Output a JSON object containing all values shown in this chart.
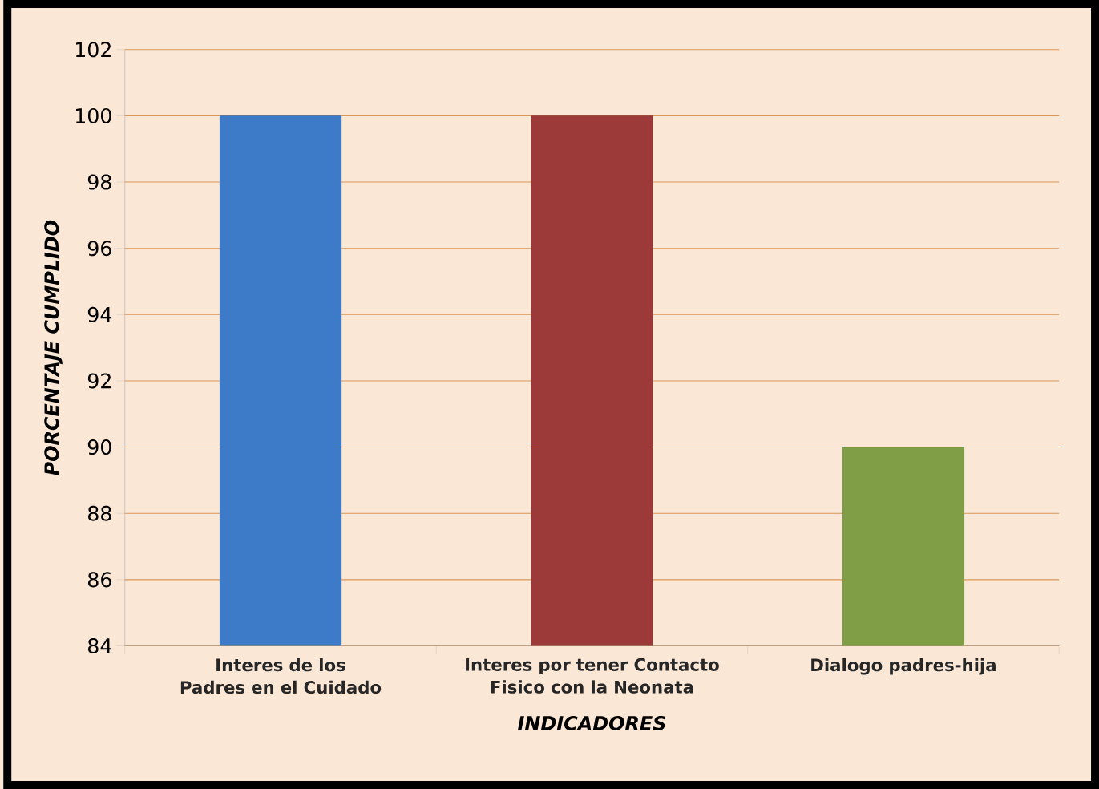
{
  "chart_data": {
    "type": "bar",
    "xlabel": "INDICADORES",
    "ylabel": "PORCENTAJE CUMPLIDO",
    "categories": [
      "Interes de los Padres en el Cuidado",
      "Interes por tener Contacto Fisico con la Neonata",
      "Dialogo padres-hija"
    ],
    "values": [
      100,
      100,
      90
    ],
    "colors": [
      "#3d7bc8",
      "#9c3a3a",
      "#7f9e45"
    ],
    "ylim": [
      84,
      102
    ],
    "yticks": [
      84,
      86,
      88,
      90,
      92,
      94,
      96,
      98,
      100,
      102
    ],
    "grid": "y"
  }
}
